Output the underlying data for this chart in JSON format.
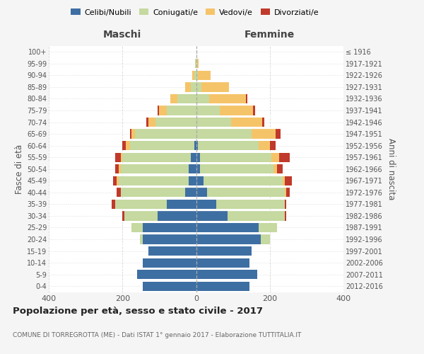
{
  "age_groups": [
    "0-4",
    "5-9",
    "10-14",
    "15-19",
    "20-24",
    "25-29",
    "30-34",
    "35-39",
    "40-44",
    "45-49",
    "50-54",
    "55-59",
    "60-64",
    "65-69",
    "70-74",
    "75-79",
    "80-84",
    "85-89",
    "90-94",
    "95-99",
    "100+"
  ],
  "birth_years": [
    "2012-2016",
    "2007-2011",
    "2002-2006",
    "1997-2001",
    "1992-1996",
    "1987-1991",
    "1982-1986",
    "1977-1981",
    "1972-1976",
    "1967-1971",
    "1962-1966",
    "1957-1961",
    "1952-1956",
    "1947-1951",
    "1942-1946",
    "1937-1941",
    "1932-1936",
    "1927-1931",
    "1922-1926",
    "1917-1921",
    "≤ 1916"
  ],
  "male": {
    "celibi": [
      145,
      160,
      145,
      130,
      145,
      145,
      105,
      80,
      30,
      20,
      20,
      15,
      5,
      0,
      0,
      0,
      0,
      0,
      0,
      0,
      0
    ],
    "coniugati": [
      0,
      0,
      0,
      0,
      8,
      30,
      90,
      140,
      175,
      190,
      185,
      185,
      175,
      165,
      110,
      80,
      50,
      15,
      5,
      2,
      0
    ],
    "vedovi": [
      0,
      0,
      0,
      0,
      0,
      0,
      0,
      0,
      0,
      5,
      5,
      5,
      10,
      10,
      20,
      20,
      20,
      15,
      5,
      0,
      0
    ],
    "divorziati": [
      0,
      0,
      0,
      0,
      0,
      0,
      5,
      10,
      10,
      10,
      10,
      15,
      10,
      5,
      5,
      5,
      0,
      0,
      0,
      0,
      0
    ]
  },
  "female": {
    "nubili": [
      145,
      165,
      145,
      150,
      175,
      170,
      85,
      55,
      30,
      20,
      10,
      10,
      5,
      0,
      0,
      0,
      0,
      0,
      0,
      0,
      0
    ],
    "coniugate": [
      0,
      0,
      0,
      0,
      25,
      50,
      155,
      185,
      210,
      215,
      200,
      195,
      165,
      150,
      95,
      65,
      35,
      15,
      5,
      2,
      0
    ],
    "vedove": [
      0,
      0,
      0,
      0,
      0,
      0,
      0,
      0,
      5,
      5,
      10,
      20,
      30,
      65,
      85,
      90,
      100,
      75,
      35,
      5,
      0
    ],
    "divorziate": [
      0,
      0,
      0,
      0,
      0,
      0,
      5,
      5,
      10,
      20,
      15,
      30,
      15,
      15,
      5,
      5,
      5,
      0,
      0,
      0,
      0
    ]
  },
  "colors": {
    "celibi": "#3e6fa3",
    "coniugati": "#c5d9a0",
    "vedovi": "#f5c469",
    "divorziati": "#c0392b"
  },
  "legend_labels": [
    "Celibi/Nubili",
    "Coniugati/e",
    "Vedovi/e",
    "Divorziati/e"
  ],
  "title": "Popolazione per età, sesso e stato civile - 2017",
  "subtitle": "COMUNE DI TORREGROTTA (ME) - Dati ISTAT 1° gennaio 2017 - Elaborazione TUTTITALIA.IT",
  "label_maschi": "Maschi",
  "label_femmine": "Femmine",
  "ylabel_left": "Fasce di età",
  "ylabel_right": "Anni di nascita",
  "xlim": 400,
  "bg_color": "#f5f5f5",
  "plot_bg": "#ffffff",
  "grid_color": "#cccccc"
}
